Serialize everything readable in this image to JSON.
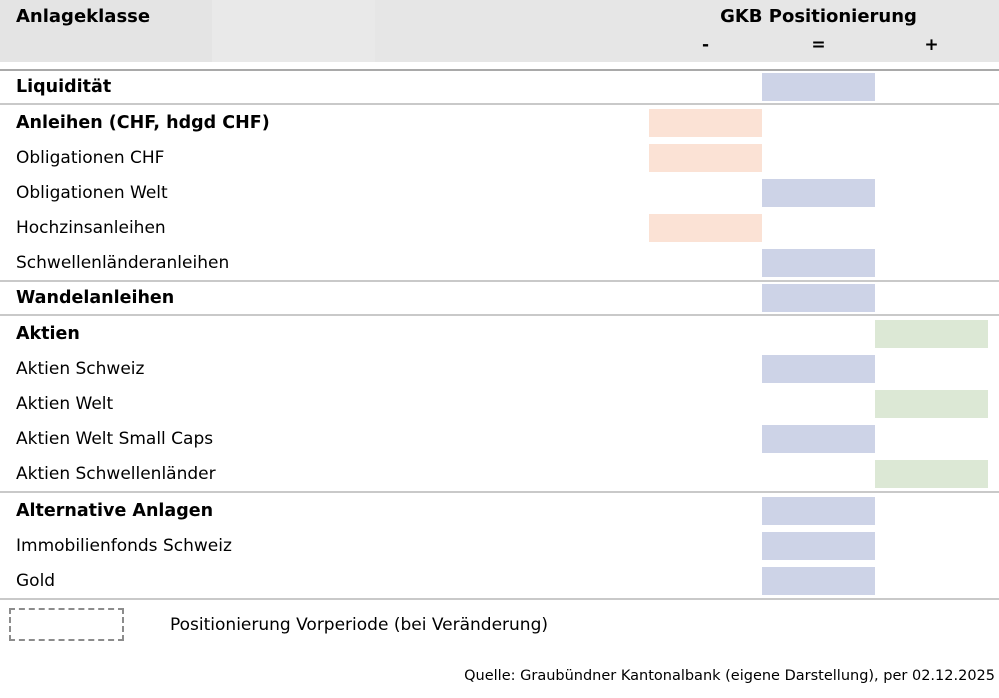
{
  "header": {
    "asset_class_label": "Anlageklasse",
    "positioning_label": "GKB Positionierung",
    "columns": [
      {
        "key": "minus",
        "label": "-"
      },
      {
        "key": "neutral",
        "label": "="
      },
      {
        "key": "plus",
        "label": "+"
      }
    ]
  },
  "colors": {
    "minus": "#fbe2d5",
    "neutral": "#cdd3e7",
    "plus": "#dce8d5"
  },
  "sections": [
    {
      "rows": [
        {
          "label": "Liquidität",
          "bold": true,
          "position": "neutral"
        }
      ]
    },
    {
      "rows": [
        {
          "label": "Anleihen (CHF, hdgd CHF)",
          "bold": true,
          "position": "minus"
        },
        {
          "label": "Obligationen CHF",
          "bold": false,
          "position": "minus"
        },
        {
          "label": "Obligationen Welt",
          "bold": false,
          "position": "neutral"
        },
        {
          "label": "Hochzinsanleihen",
          "bold": false,
          "position": "minus"
        },
        {
          "label": "Schwellenländeranleihen",
          "bold": false,
          "position": "neutral"
        }
      ]
    },
    {
      "rows": [
        {
          "label": "Wandelanleihen",
          "bold": true,
          "position": "neutral"
        }
      ]
    },
    {
      "rows": [
        {
          "label": "Aktien",
          "bold": true,
          "position": "plus"
        },
        {
          "label": "Aktien Schweiz",
          "bold": false,
          "position": "neutral"
        },
        {
          "label": "Aktien Welt",
          "bold": false,
          "position": "plus"
        },
        {
          "label": "Aktien Welt Small Caps",
          "bold": false,
          "position": "neutral"
        },
        {
          "label": "Aktien Schwellenländer",
          "bold": false,
          "position": "plus"
        }
      ]
    },
    {
      "rows": [
        {
          "label": "Alternative Anlagen",
          "bold": true,
          "position": "neutral"
        },
        {
          "label": "Immobilienfonds Schweiz",
          "bold": false,
          "position": "neutral"
        },
        {
          "label": "Gold",
          "bold": false,
          "position": "neutral"
        }
      ]
    }
  ],
  "legend": {
    "label": "Positionierung Vorperiode (bei Veränderung)"
  },
  "source": "Quelle: Graubündner Kantonalbank (eigene Darstellung), per 02.12.2025",
  "chart_data": {
    "type": "table",
    "title": "GKB Positionierung",
    "columns": [
      "-",
      "=",
      "+"
    ],
    "rows": [
      {
        "label": "Liquidität",
        "group": true,
        "position": "="
      },
      {
        "label": "Anleihen (CHF, hdgd CHF)",
        "group": true,
        "position": "-"
      },
      {
        "label": "Obligationen CHF",
        "group": false,
        "position": "-"
      },
      {
        "label": "Obligationen Welt",
        "group": false,
        "position": "="
      },
      {
        "label": "Hochzinsanleihen",
        "group": false,
        "position": "-"
      },
      {
        "label": "Schwellenländeranleihen",
        "group": false,
        "position": "="
      },
      {
        "label": "Wandelanleihen",
        "group": true,
        "position": "="
      },
      {
        "label": "Aktien",
        "group": true,
        "position": "+"
      },
      {
        "label": "Aktien Schweiz",
        "group": false,
        "position": "="
      },
      {
        "label": "Aktien Welt",
        "group": false,
        "position": "+"
      },
      {
        "label": "Aktien Welt Small Caps",
        "group": false,
        "position": "="
      },
      {
        "label": "Aktien Schwellenländer",
        "group": false,
        "position": "+"
      },
      {
        "label": "Alternative Anlagen",
        "group": true,
        "position": "="
      },
      {
        "label": "Immobilienfonds Schweiz",
        "group": false,
        "position": "="
      },
      {
        "label": "Gold",
        "group": false,
        "position": "="
      }
    ],
    "legend": "Positionierung Vorperiode (bei Veränderung)",
    "source": "Quelle: Graubündner Kantonalbank (eigene Darstellung), per 02.12.2025",
    "position_colors": {
      "-": "#fbe2d5",
      "=": "#cdd3e7",
      "+": "#dce8d5"
    }
  }
}
